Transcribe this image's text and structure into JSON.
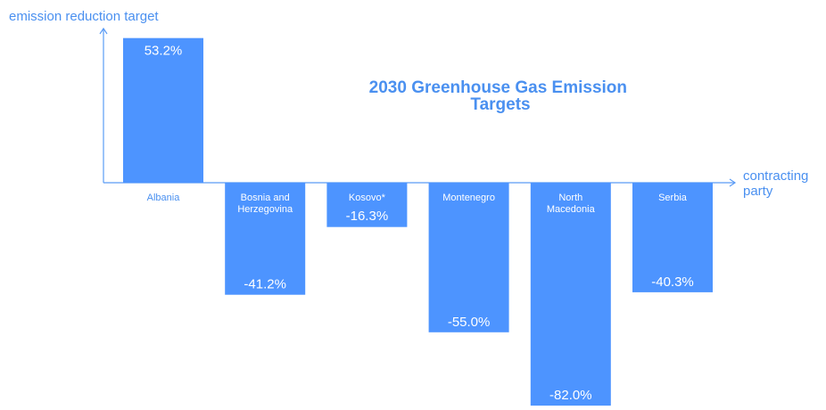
{
  "colors": {
    "bar": "#4d94ff",
    "axis": "#5b9cf5",
    "title": "#4a90f0",
    "label_on_bar": "#ffffff",
    "label_off_bar": "#4a90f0"
  },
  "chart_data": {
    "type": "bar",
    "title_lines": [
      "2030 Greenhouse Gas Emission",
      "Targets"
    ],
    "ylabel": "emission reduction target",
    "xlabel_lines": [
      "contracting",
      "party"
    ],
    "categories": [
      [
        "Albania"
      ],
      [
        "Bosnia and",
        "Herzegovina"
      ],
      [
        "Kosovo*"
      ],
      [
        "Montenegro"
      ],
      [
        "North",
        "Macedonia"
      ],
      [
        "Serbia"
      ]
    ],
    "values": [
      53.2,
      -41.2,
      -16.3,
      -55.0,
      -82.0,
      -40.3
    ],
    "value_labels": [
      "53.2%",
      "-41.2%",
      "-16.3%",
      "-55.0%",
      "-82.0%",
      "-40.3%"
    ],
    "ylim": [
      -82.0,
      53.2
    ],
    "grid": false
  }
}
